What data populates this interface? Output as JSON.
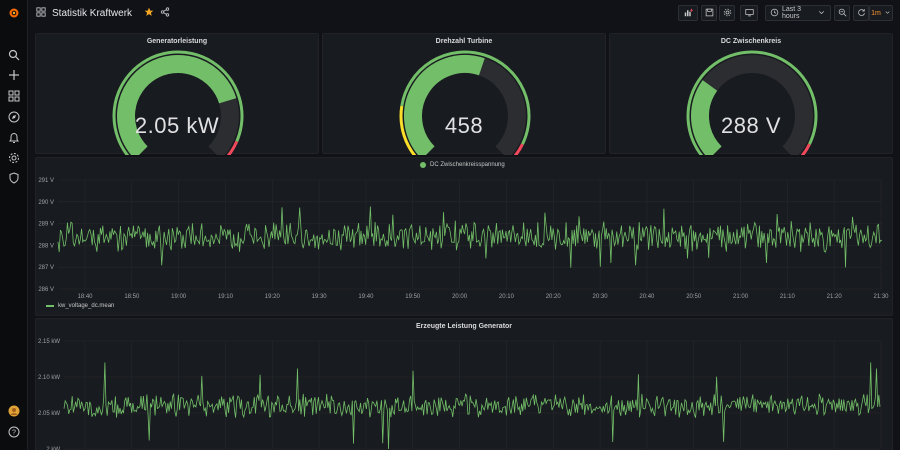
{
  "dashboard": {
    "title": "Statistik Kraftwerk",
    "starred": true
  },
  "toolbar": {
    "time_range": "Last 3 hours",
    "refresh_interval": "1m"
  },
  "colors": {
    "green": "#73bf69",
    "red": "#f2495c",
    "yellow": "#fade2a",
    "orange": "#ff9830",
    "blue": "#8ab8ff"
  },
  "sidebar": {
    "items": [
      "grafana-logo-icon",
      "search-icon",
      "plus-icon",
      "dashboards-icon",
      "explore-icon",
      "alerting-icon",
      "configuration-icon",
      "shield-icon"
    ],
    "bottom": [
      "user-avatar",
      "help-icon"
    ]
  },
  "gauges": [
    {
      "title": "Generatorleistung",
      "display": "2.05 kW",
      "fraction": 0.77
    },
    {
      "title": "Drehzahl Turbine",
      "display": "458",
      "fraction": 0.57
    },
    {
      "title": "DC Zwischenkreis",
      "display": "288 V",
      "fraction": 0.3
    }
  ],
  "chart_data": [
    {
      "type": "line",
      "title": "DC Zwischenkreisspannung",
      "legend_top": "DC Zwischenkreisspannung",
      "legend_bottom": "kw_voltage_dc.mean",
      "y_ticks": [
        "291 V",
        "290 V",
        "289 V",
        "288 V",
        "287 V",
        "286 V"
      ],
      "ylim": [
        286,
        291
      ],
      "x_ticks": [
        "18:40",
        "18:50",
        "19:00",
        "19:10",
        "19:20",
        "19:30",
        "19:40",
        "19:50",
        "20:00",
        "20:10",
        "20:20",
        "20:30",
        "20:40",
        "20:50",
        "21:00",
        "21:10",
        "21:20",
        "21:30"
      ],
      "series": [
        {
          "name": "kw_voltage_dc.mean",
          "mean": 288.4,
          "spread": 0.5,
          "min_spike": 286.9,
          "max_spike": 289.9
        }
      ]
    },
    {
      "type": "line",
      "title": "Erzeugte Leistung Generator",
      "y_ticks": [
        "2.15 kW",
        "2.10 kW",
        "2.05 kW",
        "2 kW"
      ],
      "ylim": [
        2.0,
        2.15
      ],
      "series": [
        {
          "name": "",
          "mean": 2.06,
          "spread": 0.012,
          "min_spike": 2.0,
          "max_spike": 2.125
        }
      ]
    }
  ]
}
